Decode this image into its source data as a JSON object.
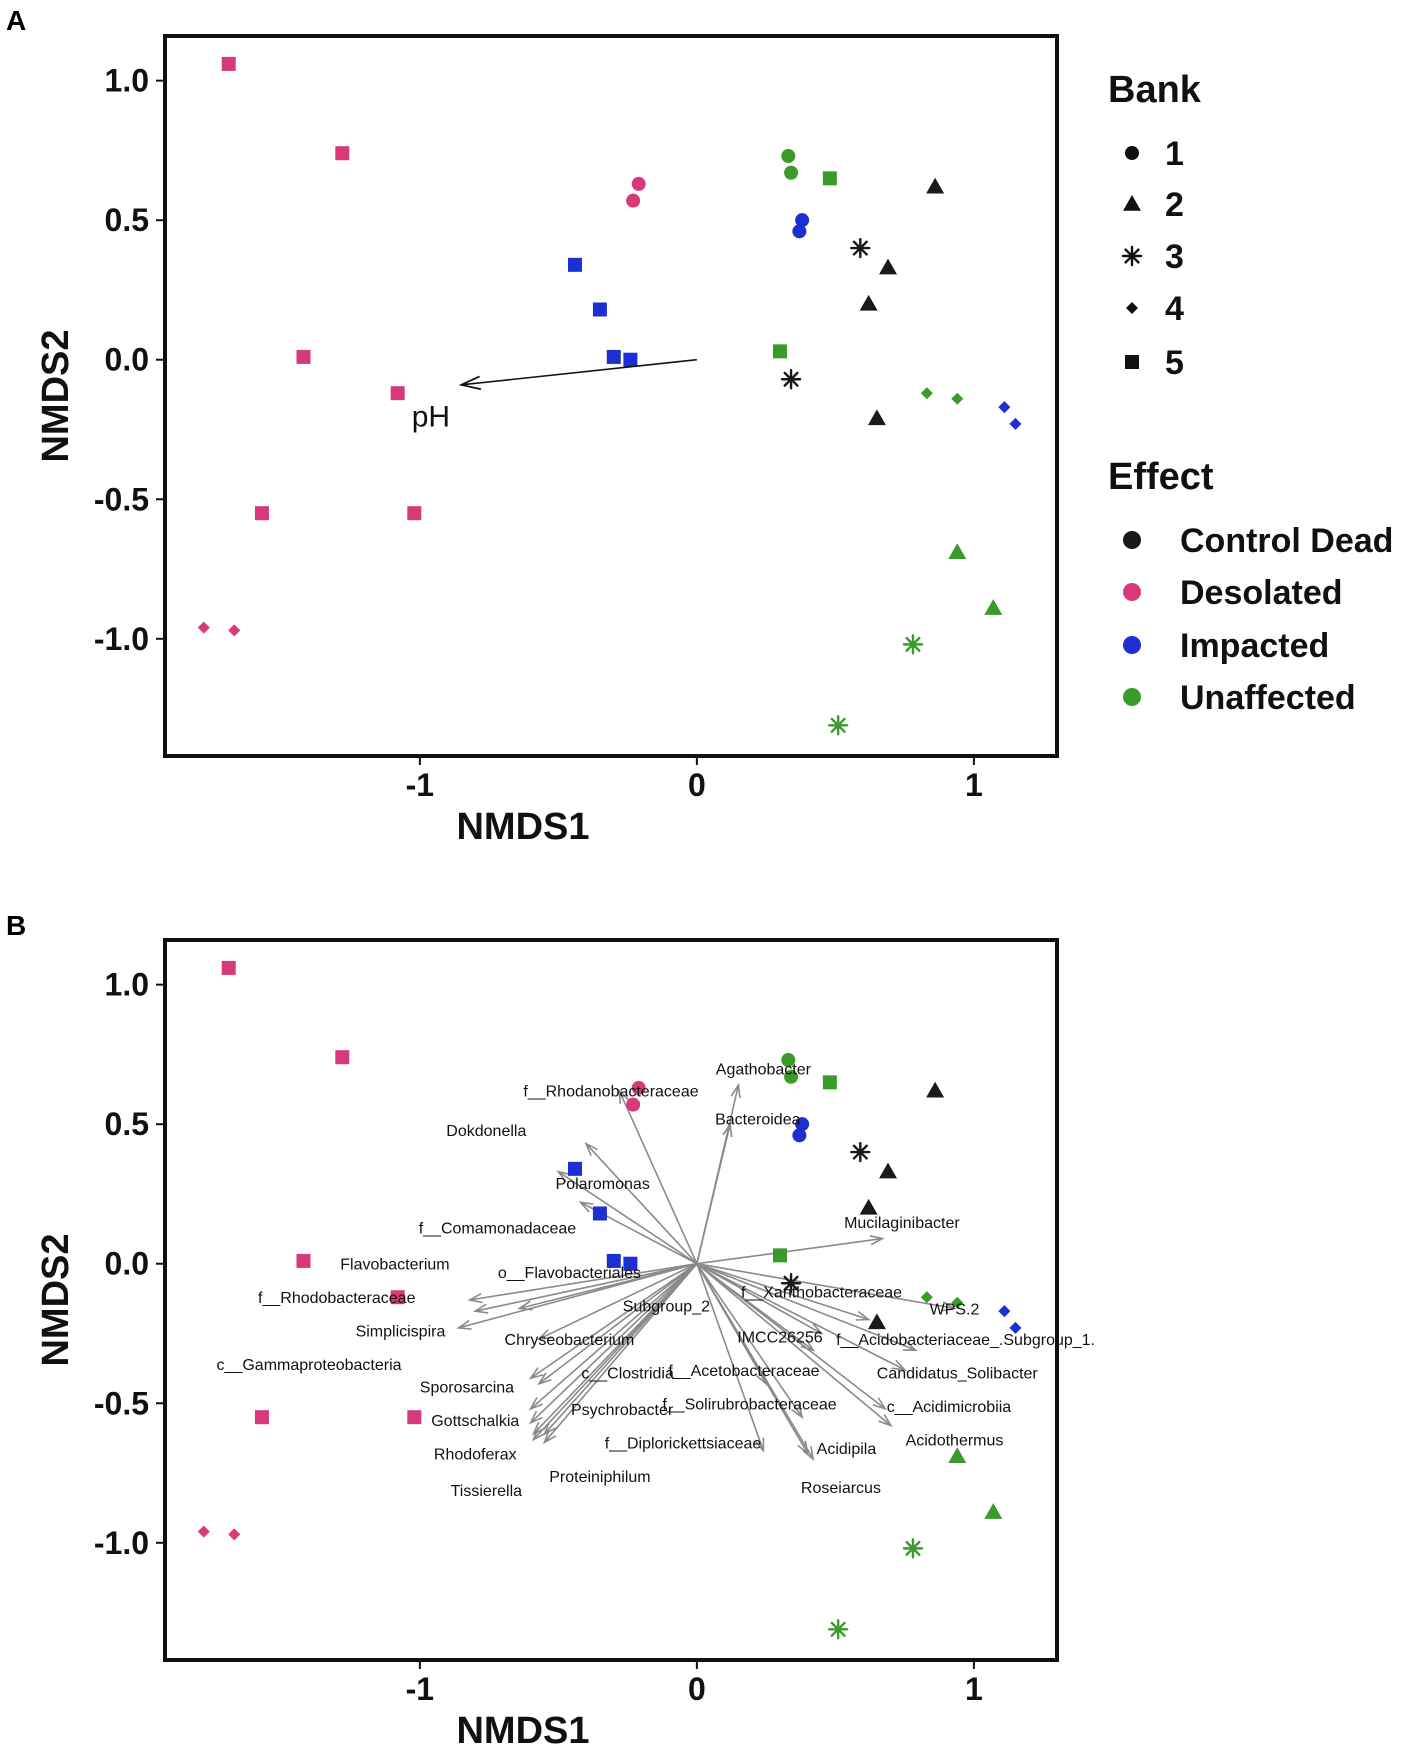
{
  "colors": {
    "Control_Dead": "#1a1a1a",
    "Desolated": "#d63a7a",
    "Impacted": "#1c2fd0",
    "Unaffected": "#3a9a2a",
    "vector_gray": "#8a8a8a",
    "ph_arrow": "#111111"
  },
  "chart_data": [
    {
      "panel": "A",
      "type": "scatter",
      "xlabel": "NMDS1",
      "ylabel": "NMDS2",
      "xlim": [
        -1.92,
        1.3
      ],
      "ylim": [
        -1.42,
        1.16
      ],
      "xticks": [
        -1,
        0,
        1
      ],
      "xtick_labels": [
        "-1",
        "0",
        "1"
      ],
      "yticks": [
        1.0,
        0.5,
        0.0,
        -0.5,
        -1.0
      ],
      "ytick_labels": [
        "1.0",
        "0.5",
        "0.0",
        "-0.5",
        "-1.0"
      ],
      "grid": false,
      "legend_position": "right",
      "legend": {
        "bank_title": "Bank",
        "bank_items": [
          {
            "label": "1",
            "shape": "circle"
          },
          {
            "label": "2",
            "shape": "triangle"
          },
          {
            "label": "3",
            "shape": "star"
          },
          {
            "label": "4",
            "shape": "diamond"
          },
          {
            "label": "5",
            "shape": "square"
          }
        ],
        "effect_title": "Effect",
        "effect_items": [
          {
            "label": "Control  Dead",
            "color_key": "Control_Dead"
          },
          {
            "label": "Desolated",
            "color_key": "Desolated"
          },
          {
            "label": "Impacted",
            "color_key": "Impacted"
          },
          {
            "label": "Unaffected",
            "color_key": "Unaffected"
          }
        ]
      },
      "vector": {
        "label": "pH",
        "x": -0.85,
        "y": -0.09,
        "label_x": -0.96,
        "label_y": -0.2
      },
      "species_vectors": [],
      "points": [
        {
          "x": -1.69,
          "y": 1.06,
          "bank": 5,
          "effect": "Desolated"
        },
        {
          "x": -1.28,
          "y": 0.74,
          "bank": 5,
          "effect": "Desolated"
        },
        {
          "x": -1.42,
          "y": 0.01,
          "bank": 5,
          "effect": "Desolated"
        },
        {
          "x": -1.08,
          "y": -0.12,
          "bank": 5,
          "effect": "Desolated"
        },
        {
          "x": -1.57,
          "y": -0.55,
          "bank": 5,
          "effect": "Desolated"
        },
        {
          "x": -1.02,
          "y": -0.55,
          "bank": 5,
          "effect": "Desolated"
        },
        {
          "x": -1.78,
          "y": -0.96,
          "bank": 4,
          "effect": "Desolated"
        },
        {
          "x": -1.67,
          "y": -0.97,
          "bank": 4,
          "effect": "Desolated"
        },
        {
          "x": -0.21,
          "y": 0.63,
          "bank": 1,
          "effect": "Desolated"
        },
        {
          "x": -0.23,
          "y": 0.57,
          "bank": 1,
          "effect": "Desolated"
        },
        {
          "x": -0.44,
          "y": 0.34,
          "bank": 5,
          "effect": "Impacted"
        },
        {
          "x": -0.35,
          "y": 0.18,
          "bank": 5,
          "effect": "Impacted"
        },
        {
          "x": -0.3,
          "y": 0.01,
          "bank": 5,
          "effect": "Impacted"
        },
        {
          "x": -0.24,
          "y": 0.0,
          "bank": 5,
          "effect": "Impacted"
        },
        {
          "x": 0.38,
          "y": 0.5,
          "bank": 1,
          "effect": "Impacted"
        },
        {
          "x": 0.37,
          "y": 0.46,
          "bank": 1,
          "effect": "Impacted"
        },
        {
          "x": 1.11,
          "y": -0.17,
          "bank": 4,
          "effect": "Impacted"
        },
        {
          "x": 1.15,
          "y": -0.23,
          "bank": 4,
          "effect": "Impacted"
        },
        {
          "x": 0.33,
          "y": 0.73,
          "bank": 1,
          "effect": "Unaffected"
        },
        {
          "x": 0.34,
          "y": 0.67,
          "bank": 1,
          "effect": "Unaffected"
        },
        {
          "x": 0.48,
          "y": 0.65,
          "bank": 5,
          "effect": "Unaffected"
        },
        {
          "x": 0.3,
          "y": 0.03,
          "bank": 5,
          "effect": "Unaffected"
        },
        {
          "x": 0.83,
          "y": -0.12,
          "bank": 4,
          "effect": "Unaffected"
        },
        {
          "x": 0.94,
          "y": -0.14,
          "bank": 4,
          "effect": "Unaffected"
        },
        {
          "x": 0.94,
          "y": -0.69,
          "bank": 2,
          "effect": "Unaffected"
        },
        {
          "x": 1.07,
          "y": -0.89,
          "bank": 2,
          "effect": "Unaffected"
        },
        {
          "x": 0.78,
          "y": -1.02,
          "bank": 3,
          "effect": "Unaffected"
        },
        {
          "x": 0.51,
          "y": -1.31,
          "bank": 3,
          "effect": "Unaffected"
        },
        {
          "x": 0.86,
          "y": 0.62,
          "bank": 2,
          "effect": "Control_Dead"
        },
        {
          "x": 0.59,
          "y": 0.4,
          "bank": 3,
          "effect": "Control_Dead"
        },
        {
          "x": 0.69,
          "y": 0.33,
          "bank": 2,
          "effect": "Control_Dead"
        },
        {
          "x": 0.62,
          "y": 0.2,
          "bank": 2,
          "effect": "Control_Dead"
        },
        {
          "x": 0.34,
          "y": -0.07,
          "bank": 3,
          "effect": "Control_Dead"
        },
        {
          "x": 0.65,
          "y": -0.21,
          "bank": 2,
          "effect": "Control_Dead"
        }
      ]
    },
    {
      "panel": "B",
      "type": "scatter",
      "xlabel": "NMDS1",
      "ylabel": "NMDS2",
      "xlim": [
        -1.92,
        1.3
      ],
      "ylim": [
        -1.42,
        1.16
      ],
      "xticks": [
        -1,
        0,
        1
      ],
      "xtick_labels": [
        "-1",
        "0",
        "1"
      ],
      "yticks": [
        1.0,
        0.5,
        0.0,
        -0.5,
        -1.0
      ],
      "ytick_labels": [
        "1.0",
        "0.5",
        "0.0",
        "-0.5",
        "-1.0"
      ],
      "grid": false,
      "vector": null,
      "species_vectors": [
        {
          "label": "Agathobacter",
          "x": 0.15,
          "y": 0.64,
          "label_x": 0.24,
          "label_y": 0.7,
          "anchor": "middle"
        },
        {
          "label": "f__Rhodanobacteraceae",
          "x": -0.28,
          "y": 0.62,
          "label_x": -0.31,
          "label_y": 0.62,
          "anchor": "middle"
        },
        {
          "label": "Bacteroidea",
          "x": 0.12,
          "y": 0.5,
          "label_x": 0.22,
          "label_y": 0.52,
          "anchor": "middle"
        },
        {
          "label": "Dokdonella",
          "x": -0.4,
          "y": 0.43,
          "label_x": -0.76,
          "label_y": 0.48,
          "anchor": "middle"
        },
        {
          "label": "Polaromonas",
          "x": -0.5,
          "y": 0.33,
          "label_x": -0.34,
          "label_y": 0.29,
          "anchor": "middle"
        },
        {
          "label": "f__Comamonadaceae",
          "x": -0.42,
          "y": 0.22,
          "label_x": -0.72,
          "label_y": 0.13,
          "anchor": "middle"
        },
        {
          "label": "Mucilaginibacter",
          "x": 0.67,
          "y": 0.09,
          "label_x": 0.74,
          "label_y": 0.15,
          "anchor": "middle"
        },
        {
          "label": "Flavobacterium",
          "x": -0.82,
          "y": -0.13,
          "label_x": -1.09,
          "label_y": 0.0,
          "anchor": "middle"
        },
        {
          "label": "o__Flavobacteriales",
          "x": -0.64,
          "y": -0.16,
          "label_x": -0.46,
          "label_y": -0.03,
          "anchor": "middle"
        },
        {
          "label": "f__Rhodobacteraceae",
          "x": -0.8,
          "y": -0.17,
          "label_x": -1.3,
          "label_y": -0.12,
          "anchor": "middle"
        },
        {
          "label": "f__Xanthobacteraceae",
          "x": 0.62,
          "y": -0.2,
          "label_x": 0.45,
          "label_y": -0.1,
          "anchor": "middle"
        },
        {
          "label": "WPS.2",
          "x": 0.93,
          "y": -0.16,
          "label_x": 0.93,
          "label_y": -0.16,
          "anchor": "middle"
        },
        {
          "label": "Subgroup_2",
          "x": 0.45,
          "y": -0.25,
          "label_x": -0.11,
          "label_y": -0.15,
          "anchor": "middle"
        },
        {
          "label": "Simplicispira",
          "x": -0.86,
          "y": -0.23,
          "label_x": -1.07,
          "label_y": -0.24,
          "anchor": "middle"
        },
        {
          "label": "Chryseobacterium",
          "x": -0.57,
          "y": -0.27,
          "label_x": -0.46,
          "label_y": -0.27,
          "anchor": "middle"
        },
        {
          "label": "IMCC26256",
          "x": 0.42,
          "y": -0.31,
          "label_x": 0.3,
          "label_y": -0.26,
          "anchor": "middle"
        },
        {
          "label": "f__Acidobacteriaceae_.Subgroup_1.",
          "x": 0.79,
          "y": -0.31,
          "label_x": 0.97,
          "label_y": -0.27,
          "anchor": "middle"
        },
        {
          "label": "Candidatus_Solibacter",
          "x": 0.75,
          "y": -0.38,
          "label_x": 0.94,
          "label_y": -0.39,
          "anchor": "middle"
        },
        {
          "label": "c__Gammaproteobacteria",
          "x": -0.6,
          "y": -0.41,
          "label_x": -1.4,
          "label_y": -0.36,
          "anchor": "middle"
        },
        {
          "label": "c__Clostridia",
          "x": -0.57,
          "y": -0.43,
          "label_x": -0.25,
          "label_y": -0.39,
          "anchor": "middle"
        },
        {
          "label": "f__Acetobacteraceae",
          "x": 0.25,
          "y": -0.43,
          "label_x": 0.17,
          "label_y": -0.38,
          "anchor": "middle"
        },
        {
          "label": "Sporosarcina",
          "x": -0.6,
          "y": -0.52,
          "label_x": -0.83,
          "label_y": -0.44,
          "anchor": "middle"
        },
        {
          "label": "Psychrobacter",
          "x": -0.6,
          "y": -0.57,
          "label_x": -0.27,
          "label_y": -0.52,
          "anchor": "middle"
        },
        {
          "label": "f__Solirubrobacteraceae",
          "x": 0.38,
          "y": -0.55,
          "label_x": 0.19,
          "label_y": -0.5,
          "anchor": "middle"
        },
        {
          "label": "c__Acidimicrobiia",
          "x": 0.68,
          "y": -0.52,
          "label_x": 0.91,
          "label_y": -0.51,
          "anchor": "middle"
        },
        {
          "label": "Acidothermus",
          "x": 0.7,
          "y": -0.58,
          "label_x": 0.93,
          "label_y": -0.63,
          "anchor": "middle"
        },
        {
          "label": "Gottschalkia",
          "x": -0.59,
          "y": -0.61,
          "label_x": -0.8,
          "label_y": -0.56,
          "anchor": "middle"
        },
        {
          "label": "f__Diplorickettsiaceae",
          "x": 0.24,
          "y": -0.67,
          "label_x": -0.05,
          "label_y": -0.64,
          "anchor": "middle"
        },
        {
          "label": "Acidipila",
          "x": 0.4,
          "y": -0.68,
          "label_x": 0.54,
          "label_y": -0.66,
          "anchor": "middle"
        },
        {
          "label": "Rhodoferax",
          "x": -0.59,
          "y": -0.63,
          "label_x": -0.8,
          "label_y": -0.68,
          "anchor": "middle"
        },
        {
          "label": "Proteiniphilum",
          "x": -0.55,
          "y": -0.61,
          "label_x": -0.35,
          "label_y": -0.76,
          "anchor": "middle"
        },
        {
          "label": "Tissierella",
          "x": -0.55,
          "y": -0.64,
          "label_x": -0.76,
          "label_y": -0.81,
          "anchor": "middle"
        },
        {
          "label": "Roseiarcus",
          "x": 0.42,
          "y": -0.7,
          "label_x": 0.52,
          "label_y": -0.8,
          "anchor": "middle"
        }
      ],
      "points": [
        {
          "x": -1.69,
          "y": 1.06,
          "bank": 5,
          "effect": "Desolated"
        },
        {
          "x": -1.28,
          "y": 0.74,
          "bank": 5,
          "effect": "Desolated"
        },
        {
          "x": -1.42,
          "y": 0.01,
          "bank": 5,
          "effect": "Desolated"
        },
        {
          "x": -1.08,
          "y": -0.12,
          "bank": 5,
          "effect": "Desolated"
        },
        {
          "x": -1.57,
          "y": -0.55,
          "bank": 5,
          "effect": "Desolated"
        },
        {
          "x": -1.02,
          "y": -0.55,
          "bank": 5,
          "effect": "Desolated"
        },
        {
          "x": -1.78,
          "y": -0.96,
          "bank": 4,
          "effect": "Desolated"
        },
        {
          "x": -1.67,
          "y": -0.97,
          "bank": 4,
          "effect": "Desolated"
        },
        {
          "x": -0.21,
          "y": 0.63,
          "bank": 1,
          "effect": "Desolated"
        },
        {
          "x": -0.23,
          "y": 0.57,
          "bank": 1,
          "effect": "Desolated"
        },
        {
          "x": -0.44,
          "y": 0.34,
          "bank": 5,
          "effect": "Impacted"
        },
        {
          "x": -0.35,
          "y": 0.18,
          "bank": 5,
          "effect": "Impacted"
        },
        {
          "x": -0.3,
          "y": 0.01,
          "bank": 5,
          "effect": "Impacted"
        },
        {
          "x": -0.24,
          "y": 0.0,
          "bank": 5,
          "effect": "Impacted"
        },
        {
          "x": 0.38,
          "y": 0.5,
          "bank": 1,
          "effect": "Impacted"
        },
        {
          "x": 0.37,
          "y": 0.46,
          "bank": 1,
          "effect": "Impacted"
        },
        {
          "x": 1.11,
          "y": -0.17,
          "bank": 4,
          "effect": "Impacted"
        },
        {
          "x": 1.15,
          "y": -0.23,
          "bank": 4,
          "effect": "Impacted"
        },
        {
          "x": 0.33,
          "y": 0.73,
          "bank": 1,
          "effect": "Unaffected"
        },
        {
          "x": 0.34,
          "y": 0.67,
          "bank": 1,
          "effect": "Unaffected"
        },
        {
          "x": 0.48,
          "y": 0.65,
          "bank": 5,
          "effect": "Unaffected"
        },
        {
          "x": 0.3,
          "y": 0.03,
          "bank": 5,
          "effect": "Unaffected"
        },
        {
          "x": 0.83,
          "y": -0.12,
          "bank": 4,
          "effect": "Unaffected"
        },
        {
          "x": 0.94,
          "y": -0.14,
          "bank": 4,
          "effect": "Unaffected"
        },
        {
          "x": 0.94,
          "y": -0.69,
          "bank": 2,
          "effect": "Unaffected"
        },
        {
          "x": 1.07,
          "y": -0.89,
          "bank": 2,
          "effect": "Unaffected"
        },
        {
          "x": 0.78,
          "y": -1.02,
          "bank": 3,
          "effect": "Unaffected"
        },
        {
          "x": 0.51,
          "y": -1.31,
          "bank": 3,
          "effect": "Unaffected"
        },
        {
          "x": 0.86,
          "y": 0.62,
          "bank": 2,
          "effect": "Control_Dead"
        },
        {
          "x": 0.59,
          "y": 0.4,
          "bank": 3,
          "effect": "Control_Dead"
        },
        {
          "x": 0.69,
          "y": 0.33,
          "bank": 2,
          "effect": "Control_Dead"
        },
        {
          "x": 0.62,
          "y": 0.2,
          "bank": 2,
          "effect": "Control_Dead"
        },
        {
          "x": 0.34,
          "y": -0.07,
          "bank": 3,
          "effect": "Control_Dead"
        },
        {
          "x": 0.65,
          "y": -0.21,
          "bank": 2,
          "effect": "Control_Dead"
        }
      ]
    }
  ]
}
